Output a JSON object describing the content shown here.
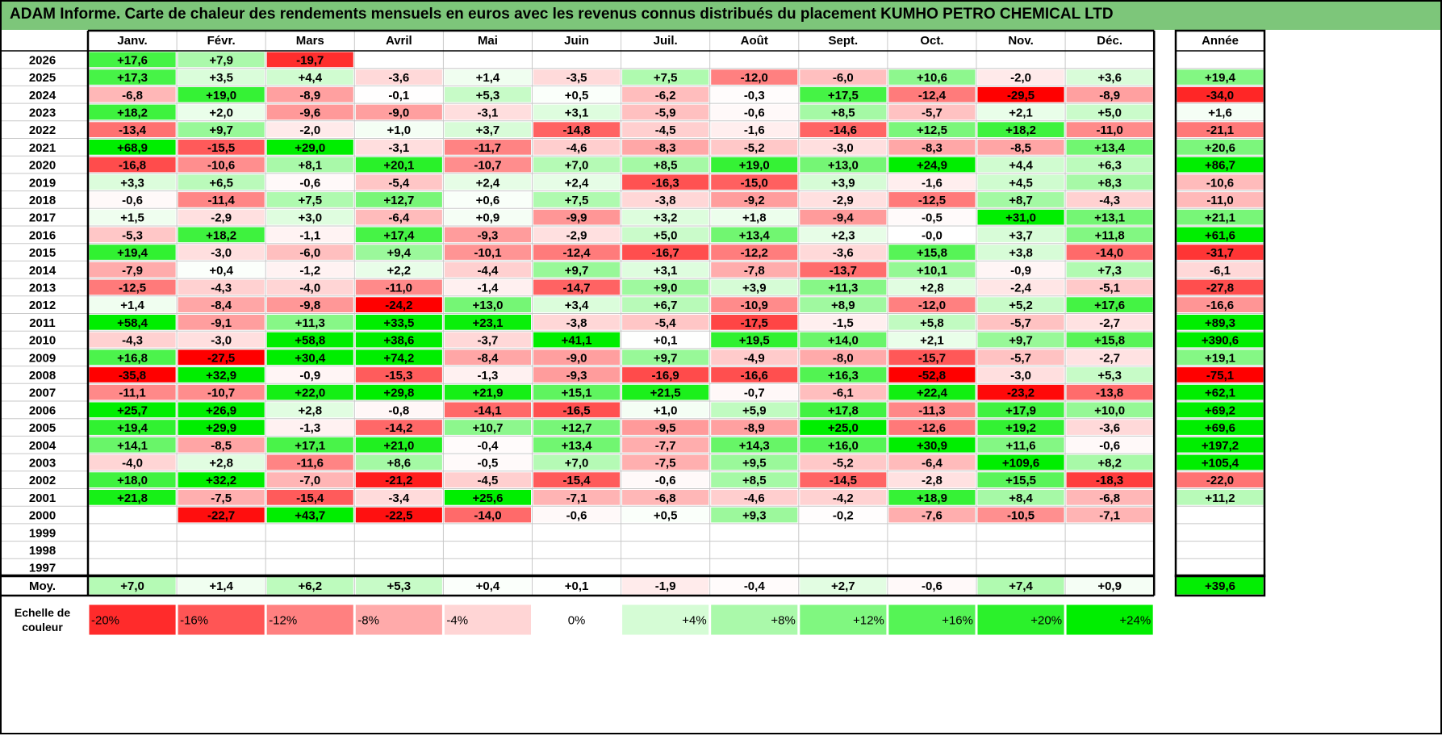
{
  "title": "ADAM Informe. Carte de chaleur des rendements mensuels en euros avec les revenus connus distribués du placement KUMHO PETRO CHEMICAL LTD",
  "year_header": "Année",
  "avg_label": "Moy.",
  "scale_label_line1": "Echelle de",
  "scale_label_line2": "couleur",
  "colors": {
    "negative_max": "#ff0000",
    "positive_max": "#00ee00",
    "neutral": "#ffffff",
    "title_bg": "#7dc67a"
  },
  "chart_data": {
    "type": "heatmap",
    "months": [
      "Janv.",
      "Févr.",
      "Mars",
      "Avril",
      "Mai",
      "Juin",
      "Juil.",
      "Août",
      "Sept.",
      "Oct.",
      "Nov.",
      "Déc."
    ],
    "rows": [
      {
        "year": "2026",
        "values": [
          17.6,
          7.9,
          -19.7,
          null,
          null,
          null,
          null,
          null,
          null,
          null,
          null,
          null
        ],
        "annual": null
      },
      {
        "year": "2025",
        "values": [
          17.3,
          3.5,
          4.4,
          -3.6,
          1.4,
          -3.5,
          7.5,
          -12.0,
          -6.0,
          10.6,
          -2.0,
          3.6
        ],
        "annual": 19.4
      },
      {
        "year": "2024",
        "values": [
          -6.8,
          19.0,
          -8.9,
          -0.1,
          5.3,
          0.5,
          -6.2,
          -0.3,
          17.5,
          -12.4,
          -29.5,
          -8.9
        ],
        "annual": -34.0
      },
      {
        "year": "2023",
        "values": [
          18.2,
          2.0,
          -9.6,
          -9.0,
          -3.1,
          3.1,
          -5.9,
          -0.6,
          8.5,
          -5.7,
          2.1,
          5.0
        ],
        "annual": 1.6
      },
      {
        "year": "2022",
        "values": [
          -13.4,
          9.7,
          -2.0,
          1.0,
          3.7,
          -14.8,
          -4.5,
          -1.6,
          -14.6,
          12.5,
          18.2,
          -11.0
        ],
        "annual": -21.1
      },
      {
        "year": "2021",
        "values": [
          68.9,
          -15.5,
          29.0,
          -3.1,
          -11.7,
          -4.6,
          -8.3,
          -5.2,
          -3.0,
          -8.3,
          -8.5,
          13.4
        ],
        "annual": 20.6
      },
      {
        "year": "2020",
        "values": [
          -16.8,
          -10.6,
          8.1,
          20.1,
          -10.7,
          7.0,
          8.5,
          19.0,
          13.0,
          24.9,
          4.4,
          6.3
        ],
        "annual": 86.7
      },
      {
        "year": "2019",
        "values": [
          3.3,
          6.5,
          -0.6,
          -5.4,
          2.4,
          2.4,
          -16.3,
          -15.0,
          3.9,
          -1.6,
          4.5,
          8.3
        ],
        "annual": -10.6
      },
      {
        "year": "2018",
        "values": [
          -0.6,
          -11.4,
          7.5,
          12.7,
          0.6,
          7.5,
          -3.8,
          -9.2,
          -2.9,
          -12.5,
          8.7,
          -4.3
        ],
        "annual": -11.0
      },
      {
        "year": "2017",
        "values": [
          1.5,
          -2.9,
          3.0,
          -6.4,
          0.9,
          -9.9,
          3.2,
          1.8,
          -9.4,
          -0.5,
          31.0,
          13.1
        ],
        "annual": 21.1
      },
      {
        "year": "2016",
        "values": [
          -5.3,
          18.2,
          -1.1,
          17.4,
          -9.3,
          -2.9,
          5.0,
          13.4,
          2.3,
          -0.0,
          3.7,
          11.8
        ],
        "annual": 61.6
      },
      {
        "year": "2015",
        "values": [
          19.4,
          -3.0,
          -6.0,
          9.4,
          -10.1,
          -12.4,
          -16.7,
          -12.2,
          -3.6,
          15.8,
          3.8,
          -14.0
        ],
        "annual": -31.7
      },
      {
        "year": "2014",
        "values": [
          -7.9,
          0.4,
          -1.2,
          2.2,
          -4.4,
          9.7,
          3.1,
          -7.8,
          -13.7,
          10.1,
          -0.9,
          7.3
        ],
        "annual": -6.1
      },
      {
        "year": "2013",
        "values": [
          -12.5,
          -4.3,
          -4.0,
          -11.0,
          -1.4,
          -14.7,
          9.0,
          3.9,
          11.3,
          2.8,
          -2.4,
          -5.1
        ],
        "annual": -27.8
      },
      {
        "year": "2012",
        "values": [
          1.4,
          -8.4,
          -9.8,
          -24.2,
          13.0,
          3.4,
          6.7,
          -10.9,
          8.9,
          -12.0,
          5.2,
          17.6
        ],
        "annual": -16.6
      },
      {
        "year": "2011",
        "values": [
          58.4,
          -9.1,
          11.3,
          33.5,
          23.1,
          -3.8,
          -5.4,
          -17.5,
          -1.5,
          5.8,
          -5.7,
          -2.7
        ],
        "annual": 89.3
      },
      {
        "year": "2010",
        "values": [
          -4.3,
          -3.0,
          58.8,
          38.6,
          -3.7,
          41.1,
          0.1,
          19.5,
          14.0,
          2.1,
          9.7,
          15.8
        ],
        "annual": 390.6
      },
      {
        "year": "2009",
        "values": [
          16.8,
          -27.5,
          30.4,
          74.2,
          -8.4,
          -9.0,
          9.7,
          -4.9,
          -8.0,
          -15.7,
          -5.7,
          -2.7
        ],
        "annual": 19.1
      },
      {
        "year": "2008",
        "values": [
          -35.8,
          32.9,
          -0.9,
          -15.3,
          -1.3,
          -9.3,
          -16.9,
          -16.6,
          16.3,
          -52.8,
          -3.0,
          5.3
        ],
        "annual": -75.1
      },
      {
        "year": "2007",
        "values": [
          -11.1,
          -10.7,
          22.0,
          29.8,
          21.9,
          15.1,
          21.5,
          -0.7,
          -6.1,
          22.4,
          -23.2,
          -13.8
        ],
        "annual": 62.1
      },
      {
        "year": "2006",
        "values": [
          25.7,
          26.9,
          2.8,
          -0.8,
          -14.1,
          -16.5,
          1.0,
          5.9,
          17.8,
          -11.3,
          17.9,
          10.0
        ],
        "annual": 69.2
      },
      {
        "year": "2005",
        "values": [
          19.4,
          29.9,
          -1.3,
          -14.2,
          10.7,
          12.7,
          -9.5,
          -8.9,
          25.0,
          -12.6,
          19.2,
          -3.6
        ],
        "annual": 69.6
      },
      {
        "year": "2004",
        "values": [
          14.1,
          -8.5,
          17.1,
          21.0,
          -0.4,
          13.4,
          -7.7,
          14.3,
          16.0,
          30.9,
          11.6,
          -0.6
        ],
        "annual": 197.2
      },
      {
        "year": "2003",
        "values": [
          -4.0,
          2.8,
          -11.6,
          8.6,
          -0.5,
          7.0,
          -7.5,
          9.5,
          -5.2,
          -6.4,
          109.6,
          8.2
        ],
        "annual": 105.4
      },
      {
        "year": "2002",
        "values": [
          18.0,
          32.2,
          -7.0,
          -21.2,
          -4.5,
          -15.4,
          -0.6,
          8.5,
          -14.5,
          -2.8,
          15.5,
          -18.3
        ],
        "annual": -22.0
      },
      {
        "year": "2001",
        "values": [
          21.8,
          -7.5,
          -15.4,
          -3.4,
          25.6,
          -7.1,
          -6.8,
          -4.6,
          -4.2,
          18.9,
          8.4,
          -6.8
        ],
        "annual": 11.2
      },
      {
        "year": "2000",
        "values": [
          null,
          -22.7,
          43.7,
          -22.5,
          -14.0,
          -0.6,
          0.5,
          9.3,
          -0.2,
          -7.6,
          -10.5,
          -7.1
        ],
        "annual": null
      },
      {
        "year": "1999",
        "values": [
          null,
          null,
          null,
          null,
          null,
          null,
          null,
          null,
          null,
          null,
          null,
          null
        ],
        "annual": null
      },
      {
        "year": "1998",
        "values": [
          null,
          null,
          null,
          null,
          null,
          null,
          null,
          null,
          null,
          null,
          null,
          null
        ],
        "annual": null
      },
      {
        "year": "1997",
        "values": [
          null,
          null,
          null,
          null,
          null,
          null,
          null,
          null,
          null,
          null,
          null,
          null
        ],
        "annual": null
      }
    ],
    "averages": [
      7.0,
      1.4,
      6.2,
      5.3,
      0.4,
      0.1,
      -1.9,
      -0.4,
      2.7,
      -0.6,
      7.4,
      0.9
    ],
    "average_annual": 39.6,
    "scale": [
      -20,
      -16,
      -12,
      -8,
      -4,
      0,
      4,
      8,
      12,
      16,
      20,
      24
    ],
    "scale_labels": [
      "-20%",
      "-16%",
      "-12%",
      "-8%",
      "-4%",
      "0%",
      "+4%",
      "+8%",
      "+12%",
      "+16%",
      "+20%",
      "+24%"
    ]
  }
}
